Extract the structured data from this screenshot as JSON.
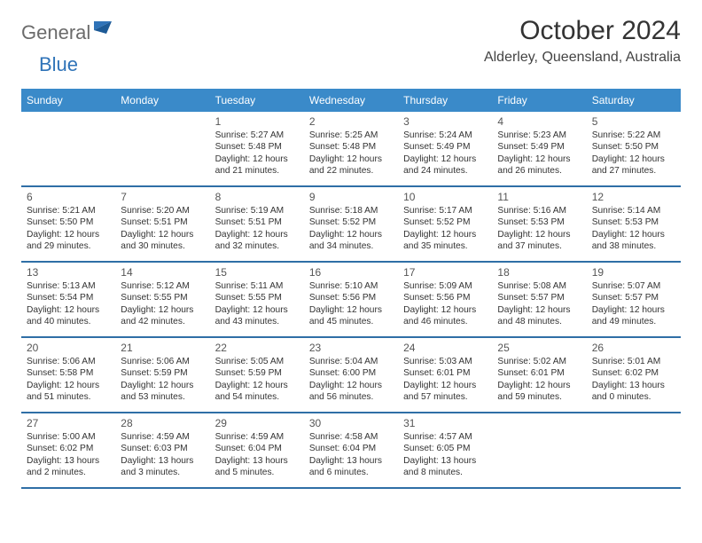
{
  "brand": {
    "word1": "General",
    "word2": "Blue"
  },
  "title": "October 2024",
  "location": "Alderley, Queensland, Australia",
  "colors": {
    "header_bg": "#3a8ac9",
    "header_text": "#ffffff",
    "row_border": "#2f6fa6",
    "logo_gray": "#6b6b6b",
    "logo_blue": "#2f73b8",
    "text": "#333333"
  },
  "columns": [
    "Sunday",
    "Monday",
    "Tuesday",
    "Wednesday",
    "Thursday",
    "Friday",
    "Saturday"
  ],
  "weeks": [
    [
      null,
      null,
      {
        "n": "1",
        "sunrise": "Sunrise: 5:27 AM",
        "sunset": "Sunset: 5:48 PM",
        "daylight": "Daylight: 12 hours and 21 minutes."
      },
      {
        "n": "2",
        "sunrise": "Sunrise: 5:25 AM",
        "sunset": "Sunset: 5:48 PM",
        "daylight": "Daylight: 12 hours and 22 minutes."
      },
      {
        "n": "3",
        "sunrise": "Sunrise: 5:24 AM",
        "sunset": "Sunset: 5:49 PM",
        "daylight": "Daylight: 12 hours and 24 minutes."
      },
      {
        "n": "4",
        "sunrise": "Sunrise: 5:23 AM",
        "sunset": "Sunset: 5:49 PM",
        "daylight": "Daylight: 12 hours and 26 minutes."
      },
      {
        "n": "5",
        "sunrise": "Sunrise: 5:22 AM",
        "sunset": "Sunset: 5:50 PM",
        "daylight": "Daylight: 12 hours and 27 minutes."
      }
    ],
    [
      {
        "n": "6",
        "sunrise": "Sunrise: 5:21 AM",
        "sunset": "Sunset: 5:50 PM",
        "daylight": "Daylight: 12 hours and 29 minutes."
      },
      {
        "n": "7",
        "sunrise": "Sunrise: 5:20 AM",
        "sunset": "Sunset: 5:51 PM",
        "daylight": "Daylight: 12 hours and 30 minutes."
      },
      {
        "n": "8",
        "sunrise": "Sunrise: 5:19 AM",
        "sunset": "Sunset: 5:51 PM",
        "daylight": "Daylight: 12 hours and 32 minutes."
      },
      {
        "n": "9",
        "sunrise": "Sunrise: 5:18 AM",
        "sunset": "Sunset: 5:52 PM",
        "daylight": "Daylight: 12 hours and 34 minutes."
      },
      {
        "n": "10",
        "sunrise": "Sunrise: 5:17 AM",
        "sunset": "Sunset: 5:52 PM",
        "daylight": "Daylight: 12 hours and 35 minutes."
      },
      {
        "n": "11",
        "sunrise": "Sunrise: 5:16 AM",
        "sunset": "Sunset: 5:53 PM",
        "daylight": "Daylight: 12 hours and 37 minutes."
      },
      {
        "n": "12",
        "sunrise": "Sunrise: 5:14 AM",
        "sunset": "Sunset: 5:53 PM",
        "daylight": "Daylight: 12 hours and 38 minutes."
      }
    ],
    [
      {
        "n": "13",
        "sunrise": "Sunrise: 5:13 AM",
        "sunset": "Sunset: 5:54 PM",
        "daylight": "Daylight: 12 hours and 40 minutes."
      },
      {
        "n": "14",
        "sunrise": "Sunrise: 5:12 AM",
        "sunset": "Sunset: 5:55 PM",
        "daylight": "Daylight: 12 hours and 42 minutes."
      },
      {
        "n": "15",
        "sunrise": "Sunrise: 5:11 AM",
        "sunset": "Sunset: 5:55 PM",
        "daylight": "Daylight: 12 hours and 43 minutes."
      },
      {
        "n": "16",
        "sunrise": "Sunrise: 5:10 AM",
        "sunset": "Sunset: 5:56 PM",
        "daylight": "Daylight: 12 hours and 45 minutes."
      },
      {
        "n": "17",
        "sunrise": "Sunrise: 5:09 AM",
        "sunset": "Sunset: 5:56 PM",
        "daylight": "Daylight: 12 hours and 46 minutes."
      },
      {
        "n": "18",
        "sunrise": "Sunrise: 5:08 AM",
        "sunset": "Sunset: 5:57 PM",
        "daylight": "Daylight: 12 hours and 48 minutes."
      },
      {
        "n": "19",
        "sunrise": "Sunrise: 5:07 AM",
        "sunset": "Sunset: 5:57 PM",
        "daylight": "Daylight: 12 hours and 49 minutes."
      }
    ],
    [
      {
        "n": "20",
        "sunrise": "Sunrise: 5:06 AM",
        "sunset": "Sunset: 5:58 PM",
        "daylight": "Daylight: 12 hours and 51 minutes."
      },
      {
        "n": "21",
        "sunrise": "Sunrise: 5:06 AM",
        "sunset": "Sunset: 5:59 PM",
        "daylight": "Daylight: 12 hours and 53 minutes."
      },
      {
        "n": "22",
        "sunrise": "Sunrise: 5:05 AM",
        "sunset": "Sunset: 5:59 PM",
        "daylight": "Daylight: 12 hours and 54 minutes."
      },
      {
        "n": "23",
        "sunrise": "Sunrise: 5:04 AM",
        "sunset": "Sunset: 6:00 PM",
        "daylight": "Daylight: 12 hours and 56 minutes."
      },
      {
        "n": "24",
        "sunrise": "Sunrise: 5:03 AM",
        "sunset": "Sunset: 6:01 PM",
        "daylight": "Daylight: 12 hours and 57 minutes."
      },
      {
        "n": "25",
        "sunrise": "Sunrise: 5:02 AM",
        "sunset": "Sunset: 6:01 PM",
        "daylight": "Daylight: 12 hours and 59 minutes."
      },
      {
        "n": "26",
        "sunrise": "Sunrise: 5:01 AM",
        "sunset": "Sunset: 6:02 PM",
        "daylight": "Daylight: 13 hours and 0 minutes."
      }
    ],
    [
      {
        "n": "27",
        "sunrise": "Sunrise: 5:00 AM",
        "sunset": "Sunset: 6:02 PM",
        "daylight": "Daylight: 13 hours and 2 minutes."
      },
      {
        "n": "28",
        "sunrise": "Sunrise: 4:59 AM",
        "sunset": "Sunset: 6:03 PM",
        "daylight": "Daylight: 13 hours and 3 minutes."
      },
      {
        "n": "29",
        "sunrise": "Sunrise: 4:59 AM",
        "sunset": "Sunset: 6:04 PM",
        "daylight": "Daylight: 13 hours and 5 minutes."
      },
      {
        "n": "30",
        "sunrise": "Sunrise: 4:58 AM",
        "sunset": "Sunset: 6:04 PM",
        "daylight": "Daylight: 13 hours and 6 minutes."
      },
      {
        "n": "31",
        "sunrise": "Sunrise: 4:57 AM",
        "sunset": "Sunset: 6:05 PM",
        "daylight": "Daylight: 13 hours and 8 minutes."
      },
      null,
      null
    ]
  ]
}
